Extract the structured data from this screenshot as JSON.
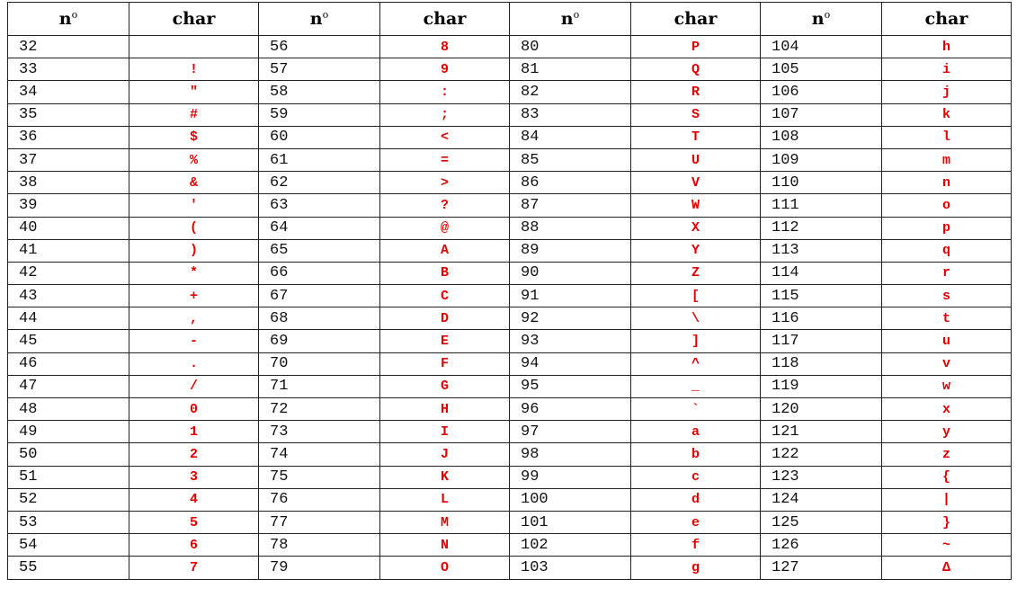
{
  "table": {
    "headers": [
      "n°",
      "char",
      "n°",
      "char",
      "n°",
      "char",
      "n°",
      "char"
    ],
    "header_labels": {
      "number": "n",
      "number_sup": "o",
      "char": "char"
    },
    "colors": {
      "char_text": "#e00000",
      "number_text": "#111111",
      "border": "#222222"
    },
    "rows": [
      [
        {
          "n": "32",
          "c": " "
        },
        {
          "n": "56",
          "c": "8"
        },
        {
          "n": "80",
          "c": "P"
        },
        {
          "n": "104",
          "c": "h"
        }
      ],
      [
        {
          "n": "33",
          "c": "!"
        },
        {
          "n": "57",
          "c": "9"
        },
        {
          "n": "81",
          "c": "Q"
        },
        {
          "n": "105",
          "c": "i"
        }
      ],
      [
        {
          "n": "34",
          "c": "\""
        },
        {
          "n": "58",
          "c": ":"
        },
        {
          "n": "82",
          "c": "R"
        },
        {
          "n": "106",
          "c": "j"
        }
      ],
      [
        {
          "n": "35",
          "c": "#"
        },
        {
          "n": "59",
          "c": ";"
        },
        {
          "n": "83",
          "c": "S"
        },
        {
          "n": "107",
          "c": "k"
        }
      ],
      [
        {
          "n": "36",
          "c": "$"
        },
        {
          "n": "60",
          "c": "<"
        },
        {
          "n": "84",
          "c": "T"
        },
        {
          "n": "108",
          "c": "l"
        }
      ],
      [
        {
          "n": "37",
          "c": "%"
        },
        {
          "n": "61",
          "c": "="
        },
        {
          "n": "85",
          "c": "U"
        },
        {
          "n": "109",
          "c": "m"
        }
      ],
      [
        {
          "n": "38",
          "c": "&"
        },
        {
          "n": "62",
          "c": ">"
        },
        {
          "n": "86",
          "c": "V"
        },
        {
          "n": "110",
          "c": "n"
        }
      ],
      [
        {
          "n": "39",
          "c": "'"
        },
        {
          "n": "63",
          "c": "?"
        },
        {
          "n": "87",
          "c": "W"
        },
        {
          "n": "111",
          "c": "o"
        }
      ],
      [
        {
          "n": "40",
          "c": "("
        },
        {
          "n": "64",
          "c": "@"
        },
        {
          "n": "88",
          "c": "X"
        },
        {
          "n": "112",
          "c": "p"
        }
      ],
      [
        {
          "n": "41",
          "c": ")"
        },
        {
          "n": "65",
          "c": "A"
        },
        {
          "n": "89",
          "c": "Y"
        },
        {
          "n": "113",
          "c": "q"
        }
      ],
      [
        {
          "n": "42",
          "c": "*"
        },
        {
          "n": "66",
          "c": "B"
        },
        {
          "n": "90",
          "c": "Z"
        },
        {
          "n": "114",
          "c": "r"
        }
      ],
      [
        {
          "n": "43",
          "c": "+"
        },
        {
          "n": "67",
          "c": "C"
        },
        {
          "n": "91",
          "c": "["
        },
        {
          "n": "115",
          "c": "s"
        }
      ],
      [
        {
          "n": "44",
          "c": ","
        },
        {
          "n": "68",
          "c": "D"
        },
        {
          "n": "92",
          "c": "\\"
        },
        {
          "n": "116",
          "c": "t"
        }
      ],
      [
        {
          "n": "45",
          "c": "-"
        },
        {
          "n": "69",
          "c": "E"
        },
        {
          "n": "93",
          "c": "]"
        },
        {
          "n": "117",
          "c": "u"
        }
      ],
      [
        {
          "n": "46",
          "c": "."
        },
        {
          "n": "70",
          "c": "F"
        },
        {
          "n": "94",
          "c": "^"
        },
        {
          "n": "118",
          "c": "v"
        }
      ],
      [
        {
          "n": "47",
          "c": "/"
        },
        {
          "n": "71",
          "c": "G"
        },
        {
          "n": "95",
          "c": "_"
        },
        {
          "n": "119",
          "c": "w"
        }
      ],
      [
        {
          "n": "48",
          "c": "0"
        },
        {
          "n": "72",
          "c": "H"
        },
        {
          "n": "96",
          "c": "`"
        },
        {
          "n": "120",
          "c": "x"
        }
      ],
      [
        {
          "n": "49",
          "c": "1"
        },
        {
          "n": "73",
          "c": "I"
        },
        {
          "n": "97",
          "c": "a"
        },
        {
          "n": "121",
          "c": "y"
        }
      ],
      [
        {
          "n": "50",
          "c": "2"
        },
        {
          "n": "74",
          "c": "J"
        },
        {
          "n": "98",
          "c": "b"
        },
        {
          "n": "122",
          "c": "z"
        }
      ],
      [
        {
          "n": "51",
          "c": "3"
        },
        {
          "n": "75",
          "c": "K"
        },
        {
          "n": "99",
          "c": "c"
        },
        {
          "n": "123",
          "c": "{"
        }
      ],
      [
        {
          "n": "52",
          "c": "4"
        },
        {
          "n": "76",
          "c": "L"
        },
        {
          "n": "100",
          "c": "d"
        },
        {
          "n": "124",
          "c": "|"
        }
      ],
      [
        {
          "n": "53",
          "c": "5"
        },
        {
          "n": "77",
          "c": "M"
        },
        {
          "n": "101",
          "c": "e"
        },
        {
          "n": "125",
          "c": "}"
        }
      ],
      [
        {
          "n": "54",
          "c": "6"
        },
        {
          "n": "78",
          "c": "N"
        },
        {
          "n": "102",
          "c": "f"
        },
        {
          "n": "126",
          "c": "~"
        }
      ],
      [
        {
          "n": "55",
          "c": "7"
        },
        {
          "n": "79",
          "c": "O"
        },
        {
          "n": "103",
          "c": "g"
        },
        {
          "n": "127",
          "c": "Δ"
        }
      ]
    ]
  }
}
